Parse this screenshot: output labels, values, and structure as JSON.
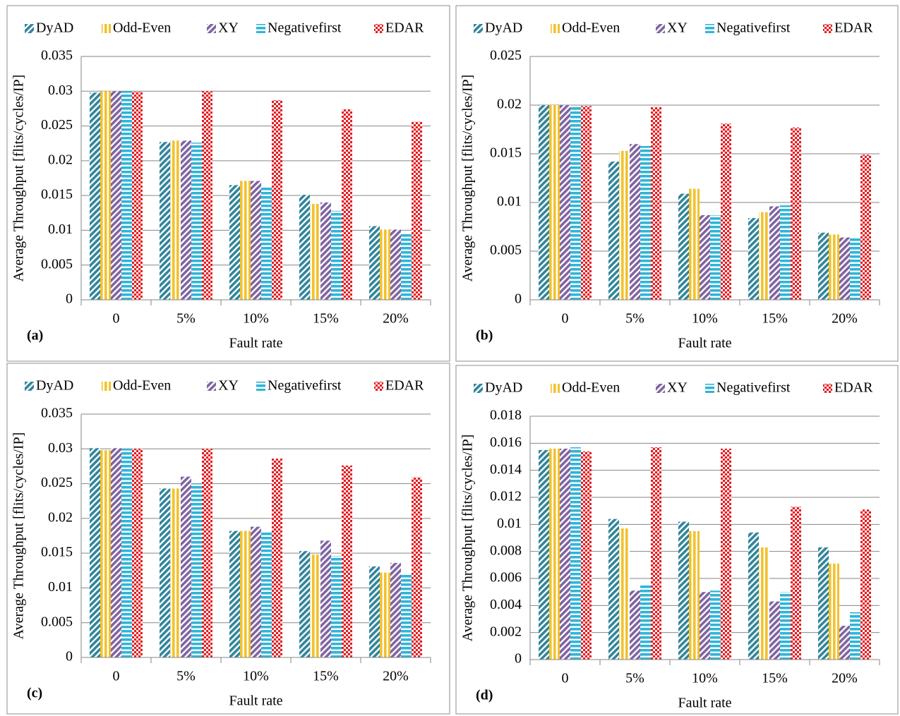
{
  "chart_data": [
    {
      "type": "bar",
      "panel_label": "(a)",
      "x_label": "Fault rate",
      "y_label": "Average Throughput [flits/cycles/IP]",
      "categories": [
        "0",
        "5%",
        "10%",
        "15%",
        "20%"
      ],
      "ylim": [
        0,
        0.035
      ],
      "yticks": [
        0,
        0.005,
        0.01,
        0.015,
        0.02,
        0.025,
        0.03,
        0.035
      ],
      "grid": true,
      "series": [
        {
          "name": "DyAD",
          "color": "#31859c",
          "pattern": "diagonal",
          "values": [
            0.0298,
            0.0227,
            0.0165,
            0.0151,
            0.0106
          ]
        },
        {
          "name": "Odd-Even",
          "color": "#f2c12e",
          "pattern": "vertical",
          "values": [
            0.03,
            0.0229,
            0.0171,
            0.0138,
            0.0101
          ]
        },
        {
          "name": "XY",
          "color": "#8064a2",
          "pattern": "diagonal",
          "values": [
            0.03,
            0.0229,
            0.0171,
            0.014,
            0.0101
          ]
        },
        {
          "name": "Negativefirst",
          "color": "#2fb5d8",
          "pattern": "horizontal",
          "values": [
            0.03,
            0.0226,
            0.0163,
            0.0128,
            0.0096
          ]
        },
        {
          "name": "EDAR",
          "color": "#e3171c",
          "pattern": "dots",
          "values": [
            0.0299,
            0.03,
            0.0287,
            0.0274,
            0.0256
          ]
        }
      ]
    },
    {
      "type": "bar",
      "panel_label": "(b)",
      "x_label": "Fault rate",
      "y_label": "Average Throughput [flits/cycles/IP]",
      "categories": [
        "0",
        "5%",
        "10%",
        "15%",
        "20%"
      ],
      "ylim": [
        0,
        0.025
      ],
      "yticks": [
        0,
        0.005,
        0.01,
        0.015,
        0.02,
        0.025
      ],
      "grid": true,
      "series": [
        {
          "name": "DyAD",
          "color": "#31859c",
          "pattern": "diagonal",
          "values": [
            0.02,
            0.0142,
            0.0109,
            0.0084,
            0.0069
          ]
        },
        {
          "name": "Odd-Even",
          "color": "#f2c12e",
          "pattern": "vertical",
          "values": [
            0.02,
            0.0153,
            0.0114,
            0.009,
            0.0067
          ]
        },
        {
          "name": "XY",
          "color": "#8064a2",
          "pattern": "diagonal",
          "values": [
            0.02,
            0.016,
            0.0087,
            0.0096,
            0.0064
          ]
        },
        {
          "name": "Negativefirst",
          "color": "#2fb5d8",
          "pattern": "horizontal",
          "values": [
            0.0198,
            0.0158,
            0.0087,
            0.0097,
            0.0064
          ]
        },
        {
          "name": "EDAR",
          "color": "#e3171c",
          "pattern": "dots",
          "values": [
            0.0199,
            0.0198,
            0.0181,
            0.0177,
            0.0149
          ]
        }
      ]
    },
    {
      "type": "bar",
      "panel_label": "(c)",
      "x_label": "Fault rate",
      "y_label": "Average Throughput [flits/cycles/IP]",
      "categories": [
        "0",
        "5%",
        "10%",
        "15%",
        "20%"
      ],
      "ylim": [
        0,
        0.035
      ],
      "yticks": [
        0,
        0.005,
        0.01,
        0.015,
        0.02,
        0.025,
        0.03,
        0.035
      ],
      "grid": true,
      "series": [
        {
          "name": "DyAD",
          "color": "#31859c",
          "pattern": "diagonal",
          "values": [
            0.0301,
            0.0243,
            0.0182,
            0.0153,
            0.0131
          ]
        },
        {
          "name": "Odd-Even",
          "color": "#f2c12e",
          "pattern": "vertical",
          "values": [
            0.0298,
            0.0243,
            0.0182,
            0.0148,
            0.0122
          ]
        },
        {
          "name": "XY",
          "color": "#8064a2",
          "pattern": "diagonal",
          "values": [
            0.0301,
            0.026,
            0.0188,
            0.0168,
            0.0136
          ]
        },
        {
          "name": "Negativefirst",
          "color": "#2fb5d8",
          "pattern": "horizontal",
          "values": [
            0.03,
            0.025,
            0.018,
            0.0146,
            0.0119
          ]
        },
        {
          "name": "EDAR",
          "color": "#e3171c",
          "pattern": "dots",
          "values": [
            0.03,
            0.03,
            0.0286,
            0.0276,
            0.0259
          ]
        }
      ]
    },
    {
      "type": "bar",
      "panel_label": "(d)",
      "x_label": "Fault rate",
      "y_label": "Average Throughput [flits/cycles/IP]",
      "categories": [
        "0",
        "5%",
        "10%",
        "15%",
        "20%"
      ],
      "ylim": [
        0,
        0.018
      ],
      "yticks": [
        0,
        0.002,
        0.004,
        0.006,
        0.008,
        0.01,
        0.012,
        0.014,
        0.016,
        0.018
      ],
      "grid": true,
      "series": [
        {
          "name": "DyAD",
          "color": "#31859c",
          "pattern": "diagonal",
          "values": [
            0.0155,
            0.0104,
            0.0102,
            0.0094,
            0.0083
          ]
        },
        {
          "name": "Odd-Even",
          "color": "#f2c12e",
          "pattern": "vertical",
          "values": [
            0.0156,
            0.0097,
            0.0095,
            0.0083,
            0.0071
          ]
        },
        {
          "name": "XY",
          "color": "#8064a2",
          "pattern": "diagonal",
          "values": [
            0.0156,
            0.0051,
            0.005,
            0.0043,
            0.0025
          ]
        },
        {
          "name": "Negativefirst",
          "color": "#2fb5d8",
          "pattern": "horizontal",
          "values": [
            0.0157,
            0.0055,
            0.0051,
            0.005,
            0.0035
          ]
        },
        {
          "name": "EDAR",
          "color": "#e3171c",
          "pattern": "dots",
          "values": [
            0.0154,
            0.0157,
            0.0156,
            0.0113,
            0.0111
          ]
        }
      ]
    }
  ]
}
